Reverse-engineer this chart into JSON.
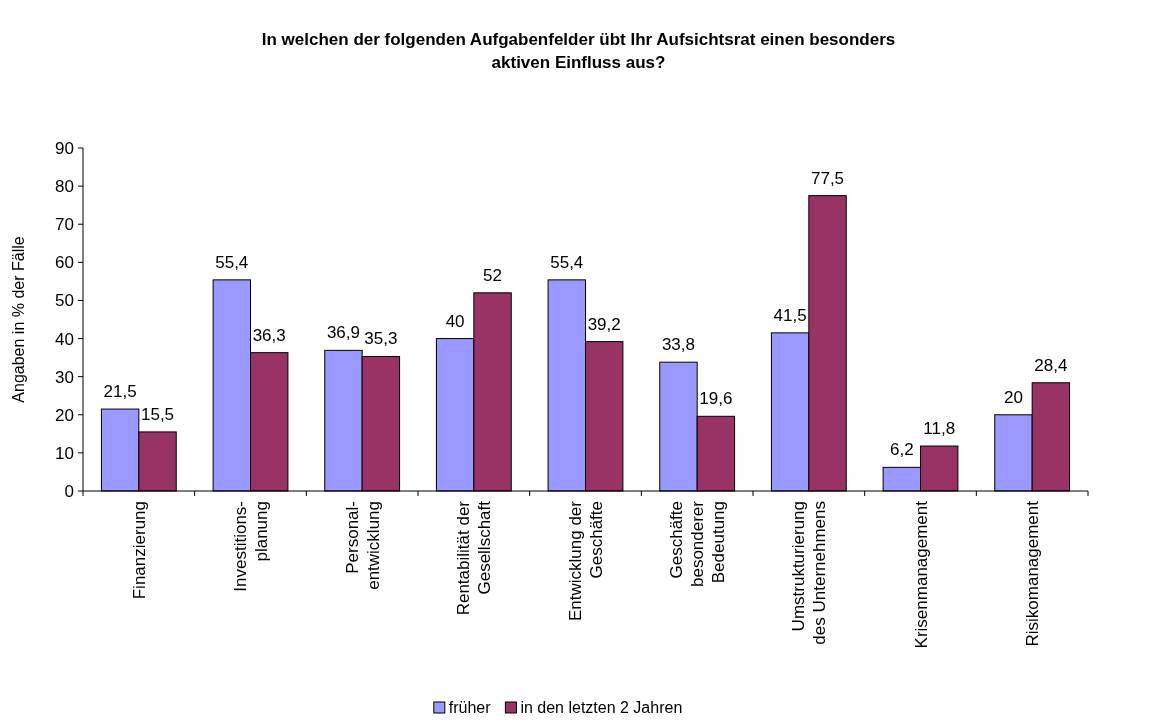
{
  "chart_data": {
    "type": "bar",
    "title": "In welchen der folgenden Aufgabenfelder übt Ihr Aufsichtsrat einen besonders\naktiven Einfluss aus?",
    "ylabel": "Angaben in % der Fälle",
    "categories": [
      "Finanzierung",
      "Investitions-\nplanung",
      "Personal-\nentwicklung",
      "Rentabilität der\nGesellschaft",
      "Entwicklung der\nGeschäfte",
      "Geschäfte\nbesonderer\nBedeutung",
      "Umstrukturierung\ndes Unternehmens",
      "Krisenmanagement",
      "Risikomanagement"
    ],
    "series": [
      {
        "name": "früher",
        "color": "#9999ff",
        "values": [
          21.5,
          55.4,
          36.9,
          40,
          55.4,
          33.8,
          41.5,
          6.2,
          20
        ],
        "value_labels": [
          "21,5",
          "55,4",
          "36,9",
          "40",
          "55,4",
          "33,8",
          "41,5",
          "6,2",
          "20"
        ]
      },
      {
        "name": "in den letzten 2 Jahren",
        "color": "#993366",
        "values": [
          15.5,
          36.3,
          35.3,
          52,
          39.2,
          19.6,
          77.5,
          11.8,
          28.4
        ],
        "value_labels": [
          "15,5",
          "36,3",
          "35,3",
          "52",
          "39,2",
          "19,6",
          "77,5",
          "11,8",
          "28,4"
        ]
      }
    ],
    "ylim": [
      0,
      90
    ],
    "yticks": [
      0,
      10,
      20,
      30,
      40,
      50,
      60,
      70,
      80,
      90
    ],
    "legend": "bottom",
    "grid": false
  }
}
